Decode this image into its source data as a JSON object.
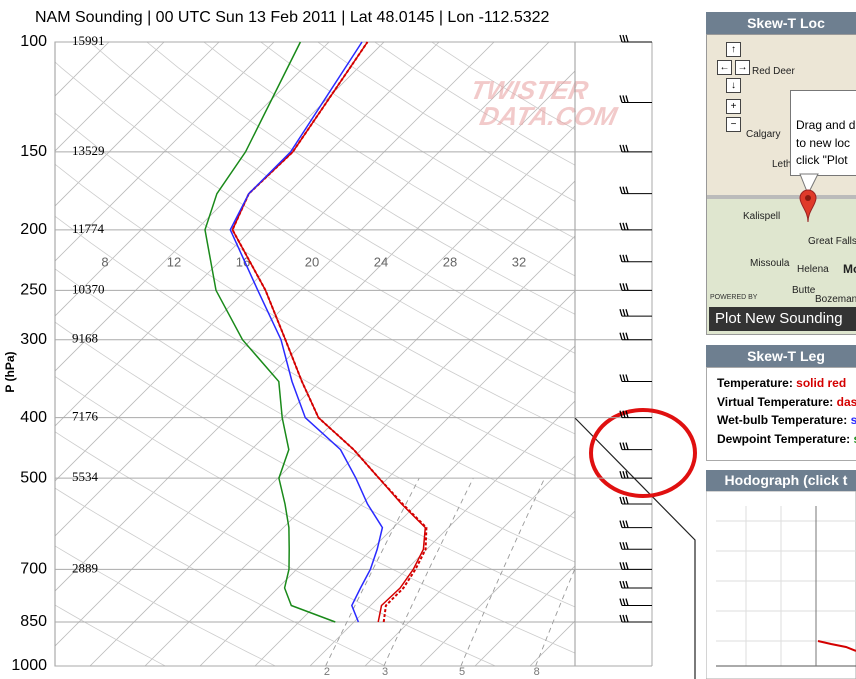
{
  "chart_data": {
    "type": "skewt",
    "title": "NAM Sounding | 00 UTC Sun 13 Feb 2011 | Lat 48.0145 | Lon -112.5322",
    "y_label": "P (hPa)",
    "ylim": [
      1000,
      100
    ],
    "y_log": true,
    "grid": true,
    "yticks": [
      100,
      150,
      200,
      250,
      300,
      400,
      500,
      700,
      850,
      1000
    ],
    "heights": [
      15991,
      13529,
      11774,
      10370,
      9168,
      7176,
      5534,
      2889,
      null,
      null
    ],
    "pressure": [
      850,
      800,
      750,
      700,
      650,
      600,
      550,
      500,
      450,
      400,
      350,
      300,
      250,
      200,
      175,
      150,
      100
    ],
    "series": [
      {
        "name": "Temperature",
        "style_label": "solid red",
        "color": "#d40000",
        "dashed": false,
        "values": [
          -7.8,
          -9,
          -8.9,
          -9.4,
          -10.3,
          -12.1,
          -16.4,
          -20.8,
          -25.7,
          -31.8,
          -36.6,
          -41.9,
          -48.2,
          -56.7,
          -58.5,
          -58.3,
          -61.5
        ]
      },
      {
        "name": "Virtual Temperature",
        "style_label": "das",
        "color": "#d40000",
        "dashed": true,
        "values": [
          -7.3,
          -8.6,
          -8.6,
          -9.2,
          -10.1,
          -12.0,
          -16.3,
          -20.8,
          -25.7,
          -31.8,
          -36.6,
          -41.9,
          -48.2,
          -56.7,
          -58.5,
          -58.3,
          -61.5
        ]
      },
      {
        "name": "Wet-bulb Temperature",
        "style_label": "s",
        "color": "#2a2aff",
        "dashed": false,
        "values": [
          -9.6,
          -11.7,
          -12.5,
          -13.3,
          -14.5,
          -16,
          -19.5,
          -22.9,
          -26.9,
          -33,
          -37.5,
          -42.3,
          -48.9,
          -56.9,
          -58.5,
          -58.5,
          -62
        ]
      },
      {
        "name": "Dewpoint Temperature",
        "style_label": "s",
        "color": "#1a8a1a",
        "dashed": false,
        "values": [
          -11.7,
          -17.2,
          -19.4,
          -20.7,
          -22.5,
          -24.5,
          -27,
          -29.9,
          -31.6,
          -35.1,
          -38.7,
          -45.8,
          -52.7,
          -59.2,
          -61.4,
          -62.6,
          -67.6
        ]
      }
    ],
    "row_labels": [
      8,
      12,
      16,
      20,
      24,
      28,
      32
    ],
    "mixing_ratio_labels": [
      2,
      3,
      5,
      8
    ],
    "wind_barb_levels": [
      100,
      125,
      150,
      175,
      200,
      225,
      250,
      275,
      300,
      350,
      400,
      450,
      500,
      550,
      600,
      650,
      700,
      750,
      800,
      850
    ],
    "watermark": [
      "TWISTER",
      "DATA.COM"
    ]
  },
  "sidebar": {
    "location_panel": {
      "title": "Skew-T Loc",
      "controls": [
        "↑",
        "←",
        "→",
        "↓",
        "+",
        "−"
      ],
      "cities": [
        "Red Deer",
        "Calgary",
        "Leth",
        "Kalispell",
        "Great Falls",
        "Missoula",
        "Helena",
        "Butte",
        "Bozeman",
        "Mo"
      ],
      "popup": [
        "Drag and d",
        "to new loc",
        "click \"Plot"
      ],
      "powered_by": "POWERED BY",
      "button": "Plot New Sounding"
    },
    "legend_panel": {
      "title": "Skew-T Leg"
    },
    "hodograph_panel": {
      "title": "Hodograph (click t"
    }
  }
}
